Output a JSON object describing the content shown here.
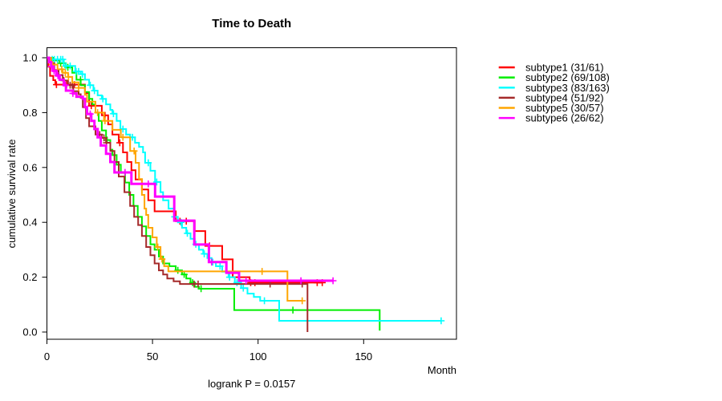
{
  "page": {
    "background": "#ffffff"
  },
  "chart_data": {
    "type": "line",
    "variant": "kaplan-meier-step-plot",
    "title": "Time to Death",
    "xlabel": "Month",
    "ylabel": "cumulative survival rate",
    "subtitle": "logrank P = 0.0157",
    "grid": false,
    "legend_position": "right",
    "xlim": [
      0,
      194
    ],
    "ylim": [
      0,
      1
    ],
    "x_ticks": [
      {
        "v": 0,
        "label": "0"
      },
      {
        "v": 50,
        "label": "50"
      },
      {
        "v": 100,
        "label": "100"
      },
      {
        "v": 150,
        "label": "150"
      }
    ],
    "y_ticks": [
      {
        "v": 0.0,
        "label": "0.0"
      },
      {
        "v": 0.2,
        "label": "0.2"
      },
      {
        "v": 0.4,
        "label": "0.4"
      },
      {
        "v": 0.6,
        "label": "0.6"
      },
      {
        "v": 0.8,
        "label": "0.8"
      },
      {
        "v": 1.0,
        "label": "1.0"
      }
    ],
    "series": [
      {
        "name": "subtype1",
        "label": "subtype1 (31/61)",
        "color": "#FF0000",
        "line_width": 2,
        "steps": [
          [
            0,
            1.0
          ],
          [
            0.7,
            0.967
          ],
          [
            1.5,
            0.934
          ],
          [
            3,
            0.918
          ],
          [
            4,
            0.902
          ],
          [
            18,
            0.871
          ],
          [
            20,
            0.825
          ],
          [
            26,
            0.79
          ],
          [
            29,
            0.757
          ],
          [
            31,
            0.72
          ],
          [
            34,
            0.69
          ],
          [
            36,
            0.655
          ],
          [
            38,
            0.62
          ],
          [
            40,
            0.59
          ],
          [
            42,
            0.556
          ],
          [
            45,
            0.52
          ],
          [
            48,
            0.48
          ],
          [
            51,
            0.44
          ],
          [
            61,
            0.404
          ],
          [
            70,
            0.368
          ],
          [
            75,
            0.314
          ],
          [
            83,
            0.265
          ],
          [
            88,
            0.2
          ],
          [
            96,
            0.18
          ]
        ],
        "end": 130.4,
        "end_censor": true,
        "censor_times": [
          4.5,
          9.3,
          13,
          21,
          27.5,
          34.5,
          63,
          66,
          77,
          96.5,
          98.5,
          128
        ]
      },
      {
        "name": "subtype2",
        "label": "subtype2 (69/108)",
        "color": "#00EE00",
        "line_width": 2,
        "steps": [
          [
            0,
            1.0
          ],
          [
            3,
            0.99
          ],
          [
            6,
            0.98
          ],
          [
            9,
            0.965
          ],
          [
            12,
            0.945
          ],
          [
            14,
            0.92
          ],
          [
            16,
            0.9
          ],
          [
            18,
            0.875
          ],
          [
            20,
            0.85
          ],
          [
            21.5,
            0.83
          ],
          [
            23,
            0.8
          ],
          [
            24.5,
            0.77
          ],
          [
            26,
            0.735
          ],
          [
            28,
            0.7
          ],
          [
            30,
            0.665
          ],
          [
            31,
            0.645
          ],
          [
            33,
            0.61
          ],
          [
            35,
            0.58
          ],
          [
            37,
            0.545
          ],
          [
            39,
            0.5
          ],
          [
            41,
            0.46
          ],
          [
            43,
            0.42
          ],
          [
            45,
            0.385
          ],
          [
            47,
            0.35
          ],
          [
            49,
            0.32
          ],
          [
            51,
            0.3
          ],
          [
            53,
            0.275
          ],
          [
            55,
            0.25
          ],
          [
            58,
            0.24
          ],
          [
            61,
            0.225
          ],
          [
            64,
            0.21
          ],
          [
            66,
            0.195
          ],
          [
            68,
            0.18
          ],
          [
            70,
            0.165
          ],
          [
            72,
            0.158
          ],
          [
            88.7,
            0.08
          ],
          [
            157.6,
            0.005
          ]
        ],
        "end": 157.6,
        "end_censor": false,
        "censor_times": [
          6.5,
          9.9,
          15.9,
          28.5,
          62,
          65,
          69,
          73,
          116.5
        ]
      },
      {
        "name": "subtype3",
        "label": "subtype3 (83/163)",
        "color": "#00FFFF",
        "line_width": 2,
        "steps": [
          [
            0,
            1.0
          ],
          [
            2,
            0.994
          ],
          [
            8,
            0.97
          ],
          [
            13.4,
            0.95
          ],
          [
            16,
            0.94
          ],
          [
            18,
            0.92
          ],
          [
            20,
            0.9
          ],
          [
            22,
            0.88
          ],
          [
            24,
            0.863
          ],
          [
            26,
            0.85
          ],
          [
            28,
            0.83
          ],
          [
            30,
            0.81
          ],
          [
            31,
            0.796
          ],
          [
            33,
            0.77
          ],
          [
            34.8,
            0.74
          ],
          [
            37.5,
            0.72
          ],
          [
            39.4,
            0.71
          ],
          [
            41.7,
            0.69
          ],
          [
            43.6,
            0.675
          ],
          [
            45.5,
            0.655
          ],
          [
            46.5,
            0.617
          ],
          [
            49,
            0.588
          ],
          [
            51.2,
            0.547
          ],
          [
            53.8,
            0.51
          ],
          [
            55,
            0.48
          ],
          [
            57.6,
            0.45
          ],
          [
            60.3,
            0.42
          ],
          [
            62,
            0.4
          ],
          [
            64,
            0.38
          ],
          [
            66,
            0.36
          ],
          [
            68,
            0.34
          ],
          [
            70,
            0.32
          ],
          [
            72,
            0.3
          ],
          [
            74,
            0.285
          ],
          [
            76,
            0.27
          ],
          [
            78,
            0.255
          ],
          [
            80,
            0.24
          ],
          [
            83,
            0.22
          ],
          [
            86,
            0.2
          ],
          [
            89,
            0.18
          ],
          [
            92,
            0.16
          ],
          [
            95,
            0.14
          ],
          [
            98,
            0.128
          ],
          [
            101,
            0.114
          ],
          [
            110,
            0.041
          ]
        ],
        "end": 186.7,
        "end_censor": true,
        "censor_times": [
          2.5,
          3.5,
          5,
          6.5,
          7.5,
          9,
          11,
          13.8,
          15,
          16.8,
          20.5,
          22.5,
          26.5,
          31.5,
          36,
          40.5,
          48,
          52,
          60.5,
          63.5,
          66.5,
          70.5,
          74.5,
          78.5,
          82,
          86.5,
          90,
          93,
          103
        ]
      },
      {
        "name": "subtype4",
        "label": "subtype4 (51/92)",
        "color": "#A52A2A",
        "line_width": 2,
        "steps": [
          [
            0,
            1.0
          ],
          [
            2,
            0.98
          ],
          [
            3.5,
            0.955
          ],
          [
            5.5,
            0.937
          ],
          [
            7.5,
            0.917
          ],
          [
            10,
            0.9
          ],
          [
            12.5,
            0.878
          ],
          [
            15,
            0.867
          ],
          [
            16,
            0.854
          ],
          [
            17,
            0.82
          ],
          [
            18.5,
            0.78
          ],
          [
            20,
            0.75
          ],
          [
            23,
            0.72
          ],
          [
            26,
            0.708
          ],
          [
            28,
            0.69
          ],
          [
            30,
            0.66
          ],
          [
            32,
            0.62
          ],
          [
            34,
            0.567
          ],
          [
            36.7,
            0.51
          ],
          [
            39.4,
            0.46
          ],
          [
            41.3,
            0.42
          ],
          [
            43.2,
            0.39
          ],
          [
            45,
            0.35
          ],
          [
            47,
            0.31
          ],
          [
            49,
            0.28
          ],
          [
            51,
            0.25
          ],
          [
            53,
            0.225
          ],
          [
            55,
            0.21
          ],
          [
            57,
            0.195
          ],
          [
            60,
            0.185
          ],
          [
            63,
            0.175
          ],
          [
            123.4,
            0.0
          ]
        ],
        "end": 123.4,
        "end_censor": false,
        "censor_times": [
          5.5,
          8,
          11,
          12,
          25,
          27,
          28.2,
          69.7,
          71.6,
          105.7,
          120.9
        ]
      },
      {
        "name": "subtype5",
        "label": "subtype5 (30/57)",
        "color": "#FFA500",
        "line_width": 2,
        "steps": [
          [
            0,
            1.0
          ],
          [
            2,
            0.975
          ],
          [
            5,
            0.958
          ],
          [
            7.5,
            0.945
          ],
          [
            10,
            0.93
          ],
          [
            12,
            0.91
          ],
          [
            15,
            0.89
          ],
          [
            18,
            0.865
          ],
          [
            19,
            0.84
          ],
          [
            23,
            0.8
          ],
          [
            27,
            0.77
          ],
          [
            31,
            0.737
          ],
          [
            35,
            0.71
          ],
          [
            39.4,
            0.66
          ],
          [
            42,
            0.617
          ],
          [
            43.6,
            0.558
          ],
          [
            45,
            0.5
          ],
          [
            46.2,
            0.45
          ],
          [
            47,
            0.427
          ],
          [
            48,
            0.38
          ],
          [
            50,
            0.345
          ],
          [
            52,
            0.31
          ],
          [
            53.8,
            0.266
          ],
          [
            55.5,
            0.24
          ],
          [
            57.5,
            0.221
          ],
          [
            113.9,
            0.114
          ]
        ],
        "end": 120.9,
        "end_censor": true,
        "censor_times": [
          2.7,
          7,
          8.7,
          10.2,
          15,
          24,
          27.5,
          36,
          41.3,
          52.5,
          54.5,
          101.9
        ]
      },
      {
        "name": "subtype6",
        "label": "subtype6 (26/62)",
        "color": "#FF00FF",
        "line_width": 3,
        "steps": [
          [
            0,
            1.0
          ],
          [
            1,
            0.984
          ],
          [
            2,
            0.968
          ],
          [
            3,
            0.952
          ],
          [
            4.5,
            0.935
          ],
          [
            6,
            0.92
          ],
          [
            8,
            0.9
          ],
          [
            9,
            0.88
          ],
          [
            12.3,
            0.87
          ],
          [
            14,
            0.858
          ],
          [
            17,
            0.85
          ],
          [
            18,
            0.82
          ],
          [
            19,
            0.795
          ],
          [
            21,
            0.77
          ],
          [
            22.5,
            0.74
          ],
          [
            24,
            0.71
          ],
          [
            25.5,
            0.68
          ],
          [
            28,
            0.65
          ],
          [
            30,
            0.62
          ],
          [
            32,
            0.582
          ],
          [
            40,
            0.54
          ],
          [
            51.2,
            0.494
          ],
          [
            60.3,
            0.406
          ],
          [
            69.8,
            0.319
          ],
          [
            76.7,
            0.255
          ],
          [
            85,
            0.216
          ],
          [
            91,
            0.187
          ]
        ],
        "end": 135.5,
        "end_censor": true,
        "censor_times": [
          2.1,
          3.4,
          5.2,
          8.8,
          12.3,
          20.5,
          37,
          48,
          78,
          94.3,
          120.3
        ]
      }
    ]
  }
}
